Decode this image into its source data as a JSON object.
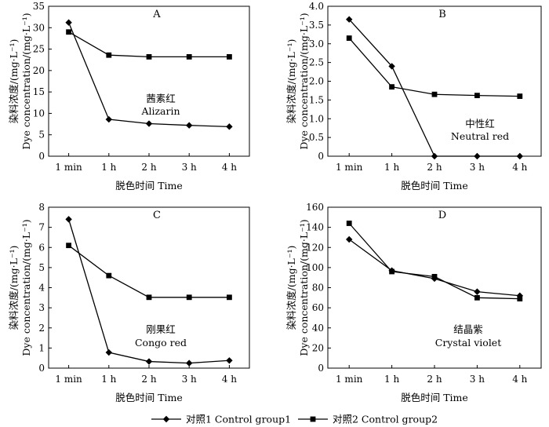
{
  "legend": {
    "items": [
      {
        "label": "对照1 Control group1",
        "marker": "diamond"
      },
      {
        "label": "对照2 Control group2",
        "marker": "square"
      }
    ]
  },
  "chart_data": [
    {
      "type": "line",
      "panel": "A",
      "categories": [
        "1 min",
        "1 h",
        "2 h",
        "3 h",
        "4 h"
      ],
      "series": [
        {
          "name": "对照1 Control group1",
          "marker": "diamond",
          "values": [
            31.2,
            8.6,
            7.6,
            7.2,
            6.9
          ]
        },
        {
          "name": "对照2 Control group2",
          "marker": "square",
          "values": [
            29.0,
            23.6,
            23.2,
            23.2,
            23.2
          ]
        }
      ],
      "ylim": [
        0,
        35
      ],
      "yticks": [
        0,
        5,
        10,
        15,
        20,
        25,
        30,
        35
      ],
      "ytick_labels": [
        "0",
        "5",
        "10",
        "15",
        "20",
        "25",
        "30",
        "35"
      ],
      "xlabel": "脱色时间 Time",
      "ylabel": "染料浓度/(mg·L⁻¹)",
      "ylabel_en": "Dye concentration/(mg·L⁻¹)",
      "annotation": [
        "茜素红",
        "Alizarin"
      ]
    },
    {
      "type": "line",
      "panel": "B",
      "categories": [
        "1 min",
        "1 h",
        "2 h",
        "3 h",
        "4 h"
      ],
      "series": [
        {
          "name": "对照1 Control group1",
          "marker": "diamond",
          "values": [
            3.65,
            2.4,
            0.0,
            0.0,
            0.0
          ]
        },
        {
          "name": "对照2 Control group2",
          "marker": "square",
          "values": [
            3.15,
            1.85,
            1.65,
            1.62,
            1.6
          ]
        }
      ],
      "ylim": [
        0,
        4
      ],
      "yticks": [
        0,
        0.5,
        1,
        1.5,
        2,
        2.5,
        3,
        3.5,
        4
      ],
      "ytick_labels": [
        "0",
        "0.5",
        "1.0",
        "1.5",
        "2.0",
        "2.5",
        "3.0",
        "3.5",
        "4.0"
      ],
      "xlabel": "脱色时间 Time",
      "ylabel": "染料浓度/(mg·L⁻¹)",
      "ylabel_en": "Dye concentration/(mg·L⁻¹)",
      "annotation": [
        "中性红",
        "Neutral red"
      ]
    },
    {
      "type": "line",
      "panel": "C",
      "categories": [
        "1 min",
        "1 h",
        "2 h",
        "3 h",
        "4 h"
      ],
      "series": [
        {
          "name": "对照1 Control group1",
          "marker": "diamond",
          "values": [
            7.4,
            0.78,
            0.33,
            0.25,
            0.38
          ]
        },
        {
          "name": "对照2 Control group2",
          "marker": "square",
          "values": [
            6.1,
            4.6,
            3.52,
            3.52,
            3.52
          ]
        }
      ],
      "ylim": [
        0,
        8
      ],
      "yticks": [
        0,
        1,
        2,
        3,
        4,
        5,
        6,
        7,
        8
      ],
      "ytick_labels": [
        "0",
        "1",
        "2",
        "3",
        "4",
        "5",
        "6",
        "7",
        "8"
      ],
      "xlabel": "脱色时间 Time",
      "ylabel": "染料浓度/(mg·L⁻¹)",
      "ylabel_en": "Dye concentration/(mg·L⁻¹)",
      "annotation": [
        "刚果红",
        "Congo red"
      ]
    },
    {
      "type": "line",
      "panel": "D",
      "categories": [
        "1 min",
        "1 h",
        "2 h",
        "3 h",
        "4 h"
      ],
      "series": [
        {
          "name": "对照1 Control group1",
          "marker": "diamond",
          "values": [
            128,
            97,
            89,
            76,
            72
          ]
        },
        {
          "name": "对照2 Control group2",
          "marker": "square",
          "values": [
            144,
            96,
            91,
            70,
            69
          ]
        }
      ],
      "ylim": [
        0,
        160
      ],
      "yticks": [
        0,
        20,
        40,
        60,
        80,
        100,
        120,
        140,
        160
      ],
      "ytick_labels": [
        "0",
        "20",
        "40",
        "60",
        "80",
        "100",
        "120",
        "140",
        "160"
      ],
      "xlabel": "脱色时间 Time",
      "ylabel": "染料浓度/(mg·L⁻¹)",
      "ylabel_en": "Dye concentration/(mg·L⁻¹)",
      "annotation": [
        "结晶紫",
        "Crystal violet"
      ]
    }
  ]
}
